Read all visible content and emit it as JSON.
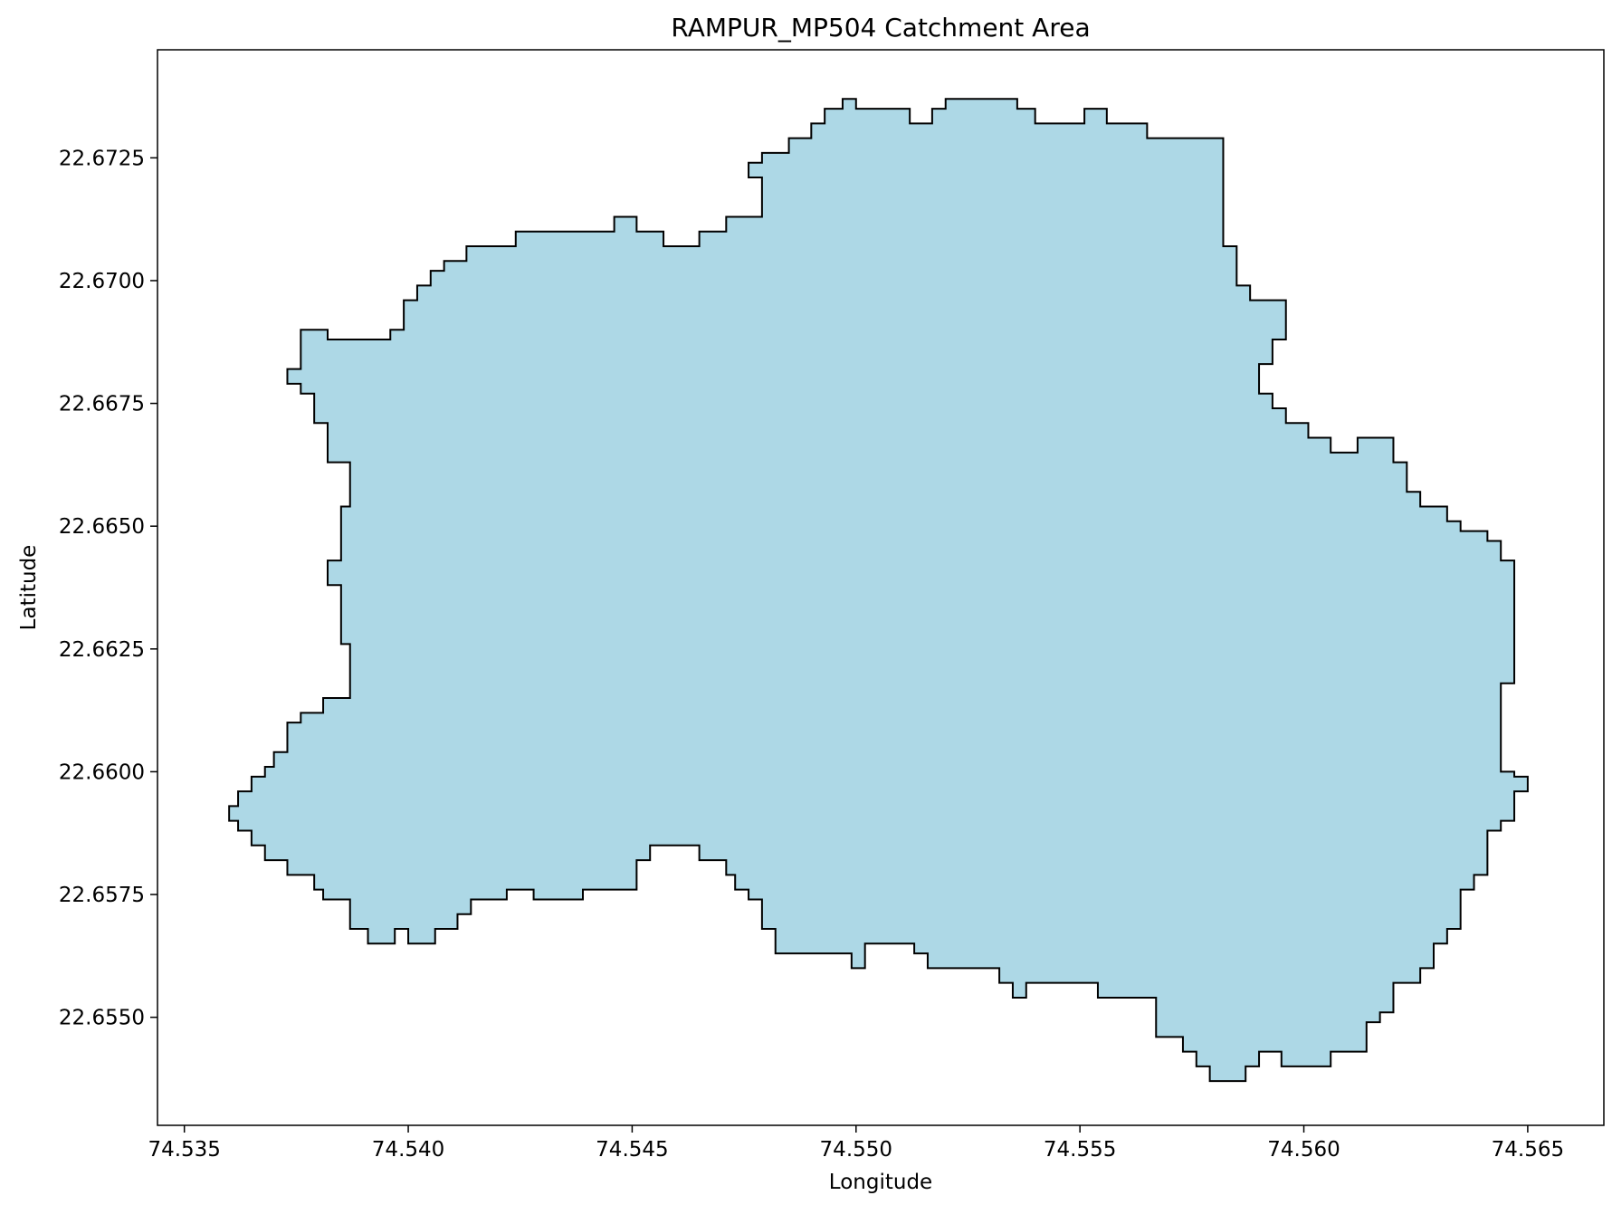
{
  "chart_data": {
    "type": "area",
    "title": "RAMPUR_MP504 Catchment Area",
    "xlabel": "Longitude",
    "ylabel": "Latitude",
    "xlim": [
      74.5344,
      74.5667
    ],
    "ylim": [
      22.6528,
      22.6747
    ],
    "xticks": [
      74.535,
      74.54,
      74.545,
      74.55,
      74.555,
      74.56,
      74.565
    ],
    "xtick_labels": [
      "74.535",
      "74.540",
      "74.545",
      "74.550",
      "74.555",
      "74.560",
      "74.565"
    ],
    "yticks": [
      22.655,
      22.6575,
      22.66,
      22.6625,
      22.665,
      22.6675,
      22.67,
      22.6725
    ],
    "ytick_labels": [
      "22.6550",
      "22.6575",
      "22.6600",
      "22.6625",
      "22.6650",
      "22.6675",
      "22.6700",
      "22.6725"
    ],
    "grid": false,
    "legend": false,
    "colors": {
      "fill": "#add8e6",
      "edge": "#000000",
      "background": "#ffffff"
    },
    "series": [
      {
        "boundary_lonlat": [
          [
            74.5497,
            22.6737
          ],
          [
            74.55,
            22.6737
          ],
          [
            74.55,
            22.6735
          ],
          [
            74.5512,
            22.6735
          ],
          [
            74.5512,
            22.6732
          ],
          [
            74.5517,
            22.6732
          ],
          [
            74.5517,
            22.6735
          ],
          [
            74.552,
            22.6735
          ],
          [
            74.552,
            22.6737
          ],
          [
            74.5536,
            22.6737
          ],
          [
            74.5536,
            22.6735
          ],
          [
            74.554,
            22.6735
          ],
          [
            74.554,
            22.6732
          ],
          [
            74.5551,
            22.6732
          ],
          [
            74.5551,
            22.6735
          ],
          [
            74.5556,
            22.6735
          ],
          [
            74.5556,
            22.6732
          ],
          [
            74.5565,
            22.6732
          ],
          [
            74.5565,
            22.6729
          ],
          [
            74.5582,
            22.6729
          ],
          [
            74.5582,
            22.6707
          ],
          [
            74.5585,
            22.6707
          ],
          [
            74.5585,
            22.6699
          ],
          [
            74.5588,
            22.6699
          ],
          [
            74.5588,
            22.6696
          ],
          [
            74.5596,
            22.6696
          ],
          [
            74.5596,
            22.6688
          ],
          [
            74.5593,
            22.6688
          ],
          [
            74.5593,
            22.6683
          ],
          [
            74.559,
            22.6683
          ],
          [
            74.559,
            22.6677
          ],
          [
            74.5593,
            22.6677
          ],
          [
            74.5593,
            22.6674
          ],
          [
            74.5596,
            22.6674
          ],
          [
            74.5596,
            22.6671
          ],
          [
            74.5601,
            22.6671
          ],
          [
            74.5601,
            22.6668
          ],
          [
            74.5606,
            22.6668
          ],
          [
            74.5606,
            22.6665
          ],
          [
            74.5612,
            22.6665
          ],
          [
            74.5612,
            22.6668
          ],
          [
            74.562,
            22.6668
          ],
          [
            74.562,
            22.6663
          ],
          [
            74.5623,
            22.6663
          ],
          [
            74.5623,
            22.6657
          ],
          [
            74.5626,
            22.6657
          ],
          [
            74.5626,
            22.6654
          ],
          [
            74.5632,
            22.6654
          ],
          [
            74.5632,
            22.6651
          ],
          [
            74.5635,
            22.6651
          ],
          [
            74.5635,
            22.6649
          ],
          [
            74.5641,
            22.6649
          ],
          [
            74.5641,
            22.6647
          ],
          [
            74.5644,
            22.6647
          ],
          [
            74.5644,
            22.6643
          ],
          [
            74.5647,
            22.6643
          ],
          [
            74.5647,
            22.6618
          ],
          [
            74.5644,
            22.6618
          ],
          [
            74.5644,
            22.66
          ],
          [
            74.5647,
            22.66
          ],
          [
            74.5647,
            22.6599
          ],
          [
            74.565,
            22.6599
          ],
          [
            74.565,
            22.6596
          ],
          [
            74.5647,
            22.6596
          ],
          [
            74.5647,
            22.659
          ],
          [
            74.5644,
            22.659
          ],
          [
            74.5644,
            22.6588
          ],
          [
            74.5641,
            22.6588
          ],
          [
            74.5641,
            22.6579
          ],
          [
            74.5638,
            22.6579
          ],
          [
            74.5638,
            22.6576
          ],
          [
            74.5635,
            22.6576
          ],
          [
            74.5635,
            22.6568
          ],
          [
            74.5632,
            22.6568
          ],
          [
            74.5632,
            22.6565
          ],
          [
            74.5629,
            22.6565
          ],
          [
            74.5629,
            22.656
          ],
          [
            74.5626,
            22.656
          ],
          [
            74.5626,
            22.6557
          ],
          [
            74.562,
            22.6557
          ],
          [
            74.562,
            22.6551
          ],
          [
            74.5617,
            22.6551
          ],
          [
            74.5617,
            22.6549
          ],
          [
            74.5614,
            22.6549
          ],
          [
            74.5614,
            22.6543
          ],
          [
            74.5606,
            22.6543
          ],
          [
            74.5606,
            22.654
          ],
          [
            74.5595,
            22.654
          ],
          [
            74.5595,
            22.6543
          ],
          [
            74.559,
            22.6543
          ],
          [
            74.559,
            22.654
          ],
          [
            74.5587,
            22.654
          ],
          [
            74.5587,
            22.6537
          ],
          [
            74.5579,
            22.6537
          ],
          [
            74.5579,
            22.654
          ],
          [
            74.5576,
            22.654
          ],
          [
            74.5576,
            22.6543
          ],
          [
            74.5573,
            22.6543
          ],
          [
            74.5573,
            22.6546
          ],
          [
            74.5567,
            22.6546
          ],
          [
            74.5567,
            22.6554
          ],
          [
            74.5554,
            22.6554
          ],
          [
            74.5554,
            22.6557
          ],
          [
            74.5538,
            22.6557
          ],
          [
            74.5538,
            22.6554
          ],
          [
            74.5535,
            22.6554
          ],
          [
            74.5535,
            22.6557
          ],
          [
            74.5532,
            22.6557
          ],
          [
            74.5532,
            22.656
          ],
          [
            74.5516,
            22.656
          ],
          [
            74.5516,
            22.6563
          ],
          [
            74.5513,
            22.6563
          ],
          [
            74.5513,
            22.6565
          ],
          [
            74.5502,
            22.6565
          ],
          [
            74.5502,
            22.656
          ],
          [
            74.5499,
            22.656
          ],
          [
            74.5499,
            22.6563
          ],
          [
            74.5482,
            22.6563
          ],
          [
            74.5482,
            22.6568
          ],
          [
            74.5479,
            22.6568
          ],
          [
            74.5479,
            22.6574
          ],
          [
            74.5476,
            22.6574
          ],
          [
            74.5476,
            22.6576
          ],
          [
            74.5473,
            22.6576
          ],
          [
            74.5473,
            22.6579
          ],
          [
            74.5471,
            22.6579
          ],
          [
            74.5471,
            22.6582
          ],
          [
            74.5465,
            22.6582
          ],
          [
            74.5465,
            22.6585
          ],
          [
            74.5454,
            22.6585
          ],
          [
            74.5454,
            22.6582
          ],
          [
            74.5451,
            22.6582
          ],
          [
            74.5451,
            22.6576
          ],
          [
            74.5439,
            22.6576
          ],
          [
            74.5439,
            22.6574
          ],
          [
            74.5428,
            22.6574
          ],
          [
            74.5428,
            22.6576
          ],
          [
            74.5422,
            22.6576
          ],
          [
            74.5422,
            22.6574
          ],
          [
            74.5414,
            22.6574
          ],
          [
            74.5414,
            22.6571
          ],
          [
            74.5411,
            22.6571
          ],
          [
            74.5411,
            22.6568
          ],
          [
            74.5406,
            22.6568
          ],
          [
            74.5406,
            22.6565
          ],
          [
            74.54,
            22.6565
          ],
          [
            74.54,
            22.6568
          ],
          [
            74.5397,
            22.6568
          ],
          [
            74.5397,
            22.6565
          ],
          [
            74.5391,
            22.6565
          ],
          [
            74.5391,
            22.6568
          ],
          [
            74.5387,
            22.6568
          ],
          [
            74.5387,
            22.6574
          ],
          [
            74.5381,
            22.6574
          ],
          [
            74.5381,
            22.6576
          ],
          [
            74.5379,
            22.6576
          ],
          [
            74.5379,
            22.6579
          ],
          [
            74.5373,
            22.6579
          ],
          [
            74.5373,
            22.6582
          ],
          [
            74.5368,
            22.6582
          ],
          [
            74.5368,
            22.6585
          ],
          [
            74.5365,
            22.6585
          ],
          [
            74.5365,
            22.6588
          ],
          [
            74.5362,
            22.6588
          ],
          [
            74.5362,
            22.659
          ],
          [
            74.536,
            22.659
          ],
          [
            74.536,
            22.6593
          ],
          [
            74.5362,
            22.6593
          ],
          [
            74.5362,
            22.6596
          ],
          [
            74.5365,
            22.6596
          ],
          [
            74.5365,
            22.6599
          ],
          [
            74.5368,
            22.6599
          ],
          [
            74.5368,
            22.6601
          ],
          [
            74.537,
            22.6601
          ],
          [
            74.537,
            22.6604
          ],
          [
            74.5373,
            22.6604
          ],
          [
            74.5373,
            22.661
          ],
          [
            74.5376,
            22.661
          ],
          [
            74.5376,
            22.6612
          ],
          [
            74.5381,
            22.6612
          ],
          [
            74.5381,
            22.6615
          ],
          [
            74.5387,
            22.6615
          ],
          [
            74.5387,
            22.6626
          ],
          [
            74.5385,
            22.6626
          ],
          [
            74.5385,
            22.6638
          ],
          [
            74.5382,
            22.6638
          ],
          [
            74.5382,
            22.6643
          ],
          [
            74.5385,
            22.6643
          ],
          [
            74.5385,
            22.6654
          ],
          [
            74.5387,
            22.6654
          ],
          [
            74.5387,
            22.6663
          ],
          [
            74.5382,
            22.6663
          ],
          [
            74.5382,
            22.6671
          ],
          [
            74.5379,
            22.6671
          ],
          [
            74.5379,
            22.6677
          ],
          [
            74.5376,
            22.6677
          ],
          [
            74.5376,
            22.6679
          ],
          [
            74.5373,
            22.6679
          ],
          [
            74.5373,
            22.6682
          ],
          [
            74.5376,
            22.6682
          ],
          [
            74.5376,
            22.669
          ],
          [
            74.5382,
            22.669
          ],
          [
            74.5382,
            22.6688
          ],
          [
            74.5396,
            22.6688
          ],
          [
            74.5396,
            22.669
          ],
          [
            74.5399,
            22.669
          ],
          [
            74.5399,
            22.6696
          ],
          [
            74.5402,
            22.6696
          ],
          [
            74.5402,
            22.6699
          ],
          [
            74.5405,
            22.6699
          ],
          [
            74.5405,
            22.6702
          ],
          [
            74.5408,
            22.6702
          ],
          [
            74.5408,
            22.6704
          ],
          [
            74.5413,
            22.6704
          ],
          [
            74.5413,
            22.6707
          ],
          [
            74.5424,
            22.6707
          ],
          [
            74.5424,
            22.671
          ],
          [
            74.5446,
            22.671
          ],
          [
            74.5446,
            22.6713
          ],
          [
            74.5451,
            22.6713
          ],
          [
            74.5451,
            22.671
          ],
          [
            74.5457,
            22.671
          ],
          [
            74.5457,
            22.6707
          ],
          [
            74.5465,
            22.6707
          ],
          [
            74.5465,
            22.671
          ],
          [
            74.5471,
            22.671
          ],
          [
            74.5471,
            22.6713
          ],
          [
            74.5479,
            22.6713
          ],
          [
            74.5479,
            22.6721
          ],
          [
            74.5476,
            22.6721
          ],
          [
            74.5476,
            22.6724
          ],
          [
            74.5479,
            22.6724
          ],
          [
            74.5479,
            22.6726
          ],
          [
            74.5485,
            22.6726
          ],
          [
            74.5485,
            22.6729
          ],
          [
            74.549,
            22.6729
          ],
          [
            74.549,
            22.6732
          ],
          [
            74.5493,
            22.6732
          ],
          [
            74.5493,
            22.6735
          ],
          [
            74.5497,
            22.6735
          ]
        ]
      }
    ]
  }
}
